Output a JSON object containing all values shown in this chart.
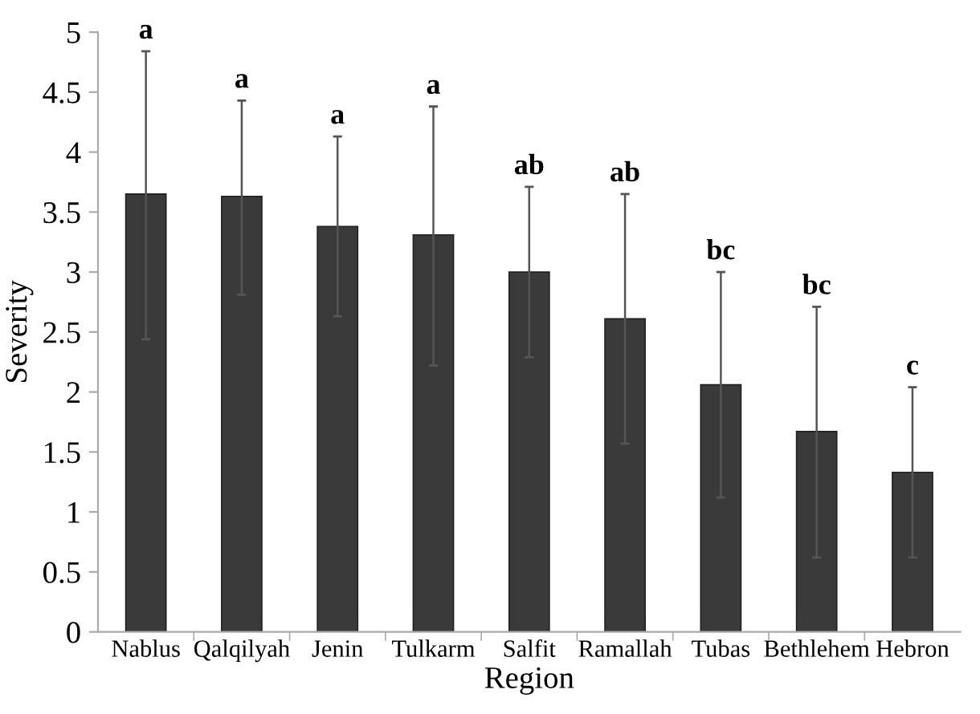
{
  "chart_data": {
    "type": "bar",
    "xlabel": "Region",
    "ylabel": "Severity",
    "categories": [
      "Nablus",
      "Qalqilyah",
      "Jenin",
      "Tulkarm",
      "Salfit",
      "Ramallah",
      "Tubas",
      "Bethlehem",
      "Hebron"
    ],
    "values": [
      3.65,
      3.63,
      3.38,
      3.31,
      3.0,
      2.61,
      2.06,
      1.67,
      1.33
    ],
    "color": "#3a3a3a",
    "errors": [
      [
        2.44,
        4.84
      ],
      [
        2.81,
        4.43
      ],
      [
        2.63,
        4.13
      ],
      [
        2.22,
        4.38
      ],
      [
        2.29,
        3.71
      ],
      [
        1.57,
        3.65
      ],
      [
        1.12,
        3.0
      ],
      [
        0.62,
        2.71
      ],
      [
        0.62,
        2.04
      ]
    ],
    "ylim": [
      0,
      5
    ],
    "yticks": [
      0,
      0.5,
      1,
      1.5,
      2,
      2.5,
      3,
      3.5,
      4,
      4.5,
      5
    ],
    "grid": false,
    "legend": false,
    "annotations": [
      {
        "text": "a",
        "x": "Nablus",
        "y": 4.84
      },
      {
        "text": "a",
        "x": "Qalqilyah",
        "y": 4.43
      },
      {
        "text": "a",
        "x": "Jenin",
        "y": 4.13
      },
      {
        "text": "a",
        "x": "Tulkarm",
        "y": 4.38
      },
      {
        "text": "ab",
        "x": "Salfit",
        "y": 3.71
      },
      {
        "text": "ab",
        "x": "Ramallah",
        "y": 3.65
      },
      {
        "text": "bc",
        "x": "Tubas",
        "y": 3.0
      },
      {
        "text": "bc",
        "x": "Bethlehem",
        "y": 2.71
      },
      {
        "text": "c",
        "x": "Hebron",
        "y": 2.04
      }
    ]
  }
}
